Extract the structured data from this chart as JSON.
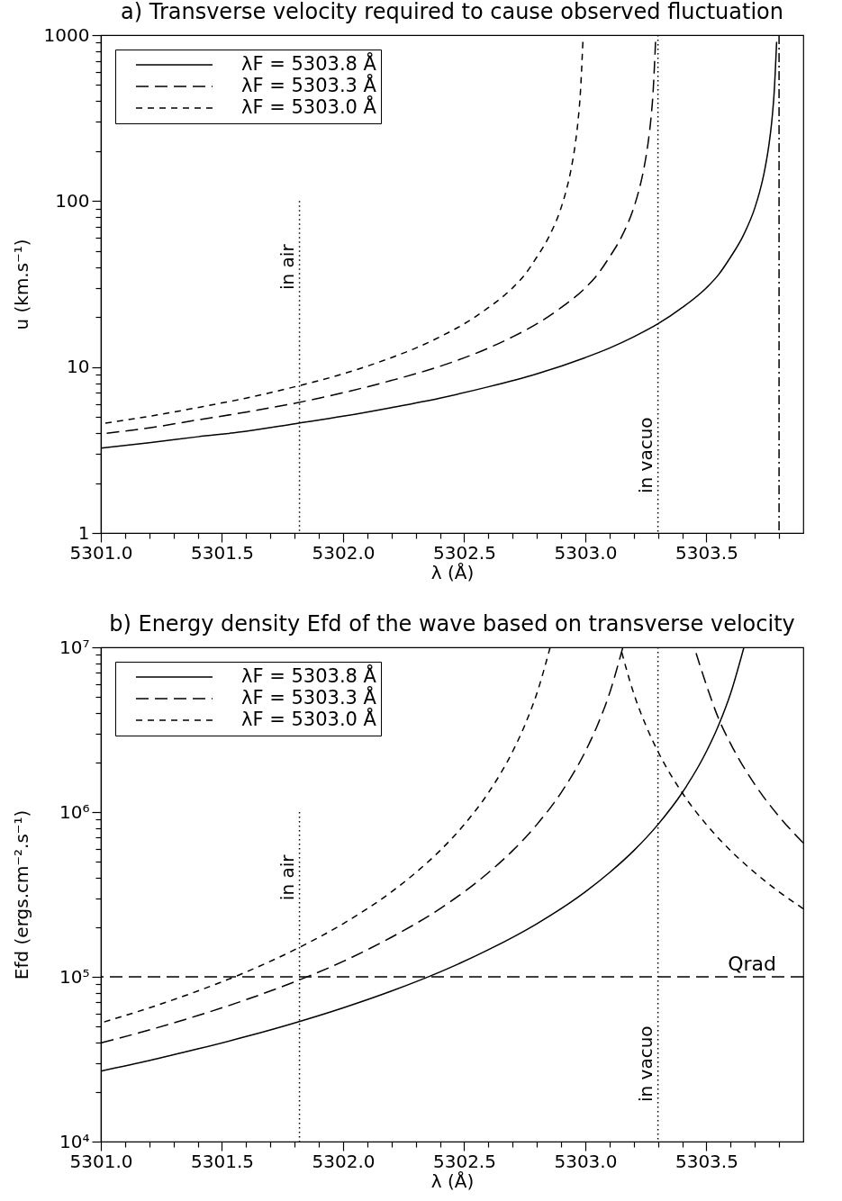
{
  "chart_data": [
    {
      "type": "line",
      "title": "a) Transverse velocity required to cause observed fluctuation",
      "xlabel": "λ (Å)",
      "ylabel": "u (km.s⁻¹)",
      "log": "y",
      "legend": "top left",
      "xlim": [
        5301.0,
        5303.9
      ],
      "ylim": [
        1,
        1000
      ],
      "xticks": [
        {
          "value": 5301.0,
          "label": "5301.0"
        },
        {
          "value": 5301.1,
          "label": null
        },
        {
          "value": 5301.2,
          "label": null
        },
        {
          "value": 5301.3,
          "label": null
        },
        {
          "value": 5301.4,
          "label": null
        },
        {
          "value": 5301.5,
          "label": "5301.5"
        },
        {
          "value": 5301.6,
          "label": null
        },
        {
          "value": 5301.7,
          "label": null
        },
        {
          "value": 5301.8,
          "label": null
        },
        {
          "value": 5301.9,
          "label": null
        },
        {
          "value": 5302.0,
          "label": "5302.0"
        },
        {
          "value": 5302.1,
          "label": null
        },
        {
          "value": 5302.2,
          "label": null
        },
        {
          "value": 5302.3,
          "label": null
        },
        {
          "value": 5302.4,
          "label": null
        },
        {
          "value": 5302.5,
          "label": "5302.5"
        },
        {
          "value": 5302.6,
          "label": null
        },
        {
          "value": 5302.7,
          "label": null
        },
        {
          "value": 5302.8,
          "label": null
        },
        {
          "value": 5302.9,
          "label": null
        },
        {
          "value": 5303.0,
          "label": "5303.0"
        },
        {
          "value": 5303.1,
          "label": null
        },
        {
          "value": 5303.2,
          "label": null
        },
        {
          "value": 5303.3,
          "label": null
        },
        {
          "value": 5303.4,
          "label": null
        },
        {
          "value": 5303.5,
          "label": "5303.5"
        },
        {
          "value": 5303.6,
          "label": null
        },
        {
          "value": 5303.7,
          "label": null
        },
        {
          "value": 5303.8,
          "label": null
        }
      ],
      "yticks": [
        1,
        {
          "value": 2,
          "label": null
        },
        {
          "value": 3,
          "label": null
        },
        {
          "value": 4,
          "label": null
        },
        {
          "value": 5,
          "label": null
        },
        {
          "value": 6,
          "label": null
        },
        {
          "value": 7,
          "label": null
        },
        {
          "value": 8,
          "label": null
        },
        {
          "value": 9,
          "label": null
        },
        10,
        {
          "value": 20,
          "label": null
        },
        {
          "value": 30,
          "label": null
        },
        {
          "value": 40,
          "label": null
        },
        {
          "value": 50,
          "label": null
        },
        {
          "value": 60,
          "label": null
        },
        {
          "value": 70,
          "label": null
        },
        {
          "value": 80,
          "label": null
        },
        {
          "value": 90,
          "label": null
        },
        100,
        {
          "value": 200,
          "label": null
        },
        {
          "value": 300,
          "label": null
        },
        {
          "value": 400,
          "label": null
        },
        {
          "value": 500,
          "label": null
        },
        {
          "value": 600,
          "label": null
        },
        {
          "value": 700,
          "label": null
        },
        {
          "value": 800,
          "label": null
        },
        {
          "value": 900,
          "label": null
        },
        1000
      ],
      "series": [
        {
          "name": "λF = 5303.8 Å",
          "color": "#000000",
          "line_style": "solid",
          "x": [
            5301.0,
            5301.2,
            5301.4,
            5301.6,
            5301.8,
            5302.0,
            5302.2,
            5302.4,
            5302.6,
            5302.8,
            5303.0,
            5303.1,
            5303.2,
            5303.3,
            5303.4,
            5303.5,
            5303.55,
            5303.6,
            5303.65,
            5303.7,
            5303.72,
            5303.74,
            5303.76,
            5303.77,
            5303.78,
            5303.79
          ],
          "values": [
            3.25,
            3.5,
            3.8,
            4.1,
            4.55,
            5.05,
            5.7,
            6.5,
            7.6,
            9.1,
            11.4,
            13,
            15.2,
            18.2,
            22.8,
            30,
            36,
            46,
            61,
            91,
            114,
            152,
            228,
            303,
            455,
            910
          ]
        },
        {
          "name": "λF = 5303.3 Å",
          "color": "#000000",
          "line_style": "dashed",
          "x": [
            5301.0,
            5301.2,
            5301.4,
            5301.6,
            5301.8,
            5302.0,
            5302.2,
            5302.4,
            5302.6,
            5302.7,
            5302.8,
            5302.9,
            5303.0,
            5303.05,
            5303.1,
            5303.15,
            5303.2,
            5303.22,
            5303.24,
            5303.26,
            5303.27,
            5303.28,
            5303.29
          ],
          "values": [
            3.95,
            4.3,
            4.8,
            5.35,
            6.05,
            7.0,
            8.3,
            10.1,
            13,
            15.2,
            18.2,
            22.8,
            30,
            36,
            46,
            61,
            91,
            114,
            152,
            228,
            303,
            455,
            910
          ]
        },
        {
          "name": "λF = 5303.0 Å",
          "color": "#000000",
          "line_style": "dashed",
          "x": [
            5301.0,
            5301.2,
            5301.4,
            5301.6,
            5301.8,
            5302.0,
            5302.2,
            5302.3,
            5302.4,
            5302.5,
            5302.6,
            5302.7,
            5302.75,
            5302.8,
            5302.85,
            5302.9,
            5302.92,
            5302.94,
            5302.96,
            5302.97,
            5302.98,
            5302.99
          ],
          "values": [
            4.55,
            5.05,
            5.7,
            6.5,
            7.6,
            9.1,
            11.4,
            13,
            15.2,
            18.2,
            22.8,
            30,
            36,
            46,
            61,
            91,
            114,
            152,
            228,
            303,
            455,
            910
          ]
        },
        {
          "type": "line",
          "color": "#000000",
          "line_style": "dotted",
          "x": [
            5301.82,
            5301.82
          ],
          "values": [
            1,
            100
          ]
        }
      ],
      "ref_lines": [
        {
          "axis": "x",
          "value": 5303.3,
          "label": "in vacuo",
          "line_style": "dotted",
          "color": "#000000"
        },
        {
          "axis": "x",
          "value": 5303.8,
          "line_style": "dashdot",
          "color": "#000000"
        }
      ],
      "annotations": [
        {
          "text": "in air",
          "x": 5301.82,
          "y": 40
        }
      ]
    },
    {
      "type": "line",
      "title": "b) Energy density Efd of the wave based on transverse velocity",
      "xlabel": "λ (Å)",
      "ylabel": "Efd (ergs.cm⁻².s⁻¹)",
      "log": "y",
      "legend": "top left",
      "xlim": [
        5301.0,
        5303.9
      ],
      "ylim": [
        10000,
        10000000
      ],
      "xticks": [
        {
          "value": 5301.0,
          "label": "5301.0"
        },
        {
          "value": 5301.1,
          "label": null
        },
        {
          "value": 5301.2,
          "label": null
        },
        {
          "value": 5301.3,
          "label": null
        },
        {
          "value": 5301.4,
          "label": null
        },
        {
          "value": 5301.5,
          "label": "5301.5"
        },
        {
          "value": 5301.6,
          "label": null
        },
        {
          "value": 5301.7,
          "label": null
        },
        {
          "value": 5301.8,
          "label": null
        },
        {
          "value": 5301.9,
          "label": null
        },
        {
          "value": 5302.0,
          "label": "5302.0"
        },
        {
          "value": 5302.1,
          "label": null
        },
        {
          "value": 5302.2,
          "label": null
        },
        {
          "value": 5302.3,
          "label": null
        },
        {
          "value": 5302.4,
          "label": null
        },
        {
          "value": 5302.5,
          "label": "5302.5"
        },
        {
          "value": 5302.6,
          "label": null
        },
        {
          "value": 5302.7,
          "label": null
        },
        {
          "value": 5302.8,
          "label": null
        },
        {
          "value": 5302.9,
          "label": null
        },
        {
          "value": 5303.0,
          "label": "5303.0"
        },
        {
          "value": 5303.1,
          "label": null
        },
        {
          "value": 5303.2,
          "label": null
        },
        {
          "value": 5303.3,
          "label": null
        },
        {
          "value": 5303.4,
          "label": null
        },
        {
          "value": 5303.5,
          "label": "5303.5"
        },
        {
          "value": 5303.6,
          "label": null
        },
        {
          "value": 5303.7,
          "label": null
        },
        {
          "value": 5303.8,
          "label": null
        }
      ],
      "yticks": [
        {
          "value": 10000,
          "label": "10⁴"
        },
        {
          "value": 20000,
          "label": null
        },
        {
          "value": 30000,
          "label": null
        },
        {
          "value": 40000,
          "label": null
        },
        {
          "value": 50000,
          "label": null
        },
        {
          "value": 60000,
          "label": null
        },
        {
          "value": 70000,
          "label": null
        },
        {
          "value": 80000,
          "label": null
        },
        {
          "value": 90000,
          "label": null
        },
        {
          "value": 100000,
          "label": "10⁵"
        },
        {
          "value": 200000,
          "label": null
        },
        {
          "value": 300000,
          "label": null
        },
        {
          "value": 400000,
          "label": null
        },
        {
          "value": 500000,
          "label": null
        },
        {
          "value": 600000,
          "label": null
        },
        {
          "value": 700000,
          "label": null
        },
        {
          "value": 800000,
          "label": null
        },
        {
          "value": 900000,
          "label": null
        },
        {
          "value": 1000000,
          "label": "10⁶"
        },
        {
          "value": 2000000,
          "label": null
        },
        {
          "value": 3000000,
          "label": null
        },
        {
          "value": 4000000,
          "label": null
        },
        {
          "value": 5000000,
          "label": null
        },
        {
          "value": 6000000,
          "label": null
        },
        {
          "value": 7000000,
          "label": null
        },
        {
          "value": 8000000,
          "label": null
        },
        {
          "value": 9000000,
          "label": null
        },
        {
          "value": 10000000,
          "label": "10⁷"
        }
      ],
      "series": [
        {
          "name": "λF = 5303.8 Å",
          "color": "#000000",
          "line_style": "solid",
          "x": [
            5301.0,
            5301.2,
            5301.4,
            5301.6,
            5301.8,
            5302.0,
            5302.2,
            5302.4,
            5302.6,
            5302.8,
            5303.0,
            5303.1,
            5303.2,
            5303.3,
            5303.4,
            5303.5,
            5303.55,
            5303.6,
            5303.655
          ],
          "values": [
            26800,
            31000,
            36500,
            43400,
            52500,
            64800,
            82000,
            107000,
            146000,
            210000,
            328000,
            429000,
            583000,
            840000,
            1310000,
            2330000,
            3360000,
            5250000,
            10000000
          ]
        },
        {
          "name": "λF = 5303.3 Å",
          "color": "#000000",
          "line_style": "dashed",
          "x": [
            5301.0,
            5301.2,
            5301.4,
            5301.6,
            5301.8,
            5302.0,
            5302.2,
            5302.4,
            5302.6,
            5302.7,
            5302.8,
            5302.9,
            5303.0,
            5303.05,
            5303.1,
            5303.155,
            5303.3,
            5303.45,
            5303.5,
            5303.55,
            5303.6,
            5303.7,
            5303.8,
            5303.9
          ],
          "values": [
            39700,
            47600,
            58200,
            72700,
            93300,
            124000,
            174000,
            259000,
            429000,
            583000,
            840000,
            1310000,
            2330000,
            3360000,
            5250000,
            10000000,
            null,
            10000000,
            5900000,
            3700000,
            2600000,
            1470000,
            940000,
            650000
          ]
        },
        {
          "name": "λF = 5303.0 Å",
          "color": "#000000",
          "line_style": "dashed",
          "x": [
            5301.0,
            5301.2,
            5301.4,
            5301.6,
            5301.8,
            5302.0,
            5302.2,
            5302.3,
            5302.4,
            5302.5,
            5302.6,
            5302.7,
            5302.75,
            5302.8,
            5302.855,
            5303.0,
            5303.145,
            5303.2,
            5303.25,
            5303.3,
            5303.4,
            5303.5,
            5303.6,
            5303.7,
            5303.8,
            5303.9
          ],
          "values": [
            52500,
            64800,
            82000,
            107000,
            146000,
            210000,
            328000,
            429000,
            583000,
            840000,
            1310000,
            2330000,
            3360000,
            5250000,
            10000000,
            null,
            10000000,
            5250000,
            3360000,
            2330000,
            1310000,
            840000,
            583000,
            429000,
            328000,
            259000
          ]
        },
        {
          "type": "line",
          "color": "#000000",
          "line_style": "dotted",
          "x": [
            5301.82,
            5301.82
          ],
          "values": [
            10000,
            1000000
          ]
        }
      ],
      "ref_lines": [
        {
          "axis": "x",
          "value": 5303.3,
          "label": "in vacuo",
          "line_style": "dotted",
          "color": "#000000"
        },
        {
          "axis": "y",
          "value": 100000,
          "label": "Qrad",
          "line_style": "dashed",
          "color": "#000000"
        }
      ],
      "annotations": [
        {
          "text": "in air",
          "x": 5301.82,
          "y": 400000
        }
      ]
    }
  ]
}
